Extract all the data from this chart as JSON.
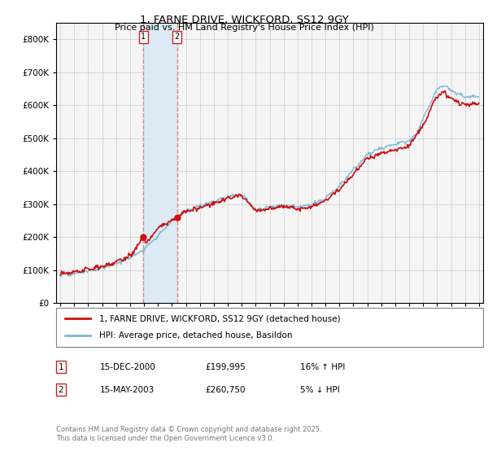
{
  "title": "1, FARNE DRIVE, WICKFORD, SS12 9GY",
  "subtitle": "Price paid vs. HM Land Registry's House Price Index (HPI)",
  "legend_entries": [
    "1, FARNE DRIVE, WICKFORD, SS12 9GY (detached house)",
    "HPI: Average price, detached house, Basildon"
  ],
  "transaction_1": {
    "label": "1",
    "date": "15-DEC-2000",
    "price": "£199,995",
    "hpi": "16% ↑ HPI",
    "year": 2000.958,
    "value": 199995
  },
  "transaction_2": {
    "label": "2",
    "date": "15-MAY-2003",
    "price": "£260,750",
    "hpi": "5% ↓ HPI",
    "year": 2003.375,
    "value": 260750
  },
  "footer": "Contains HM Land Registry data © Crown copyright and database right 2025.\nThis data is licensed under the Open Government Licence v3.0.",
  "ylabel_ticks": [
    0,
    100000,
    200000,
    300000,
    400000,
    500000,
    600000,
    700000,
    800000
  ],
  "ylim": [
    0,
    850000
  ],
  "xlim_start": 1994.7,
  "xlim_end": 2025.3,
  "line_color_hpi": "#7ab8d9",
  "line_color_price": "#cc1111",
  "shade_color": "#daeaf5",
  "vline_color": "#e08080",
  "grid_color": "#cccccc",
  "bg_color": "#ffffff",
  "plot_bg": "#f5f5f5"
}
